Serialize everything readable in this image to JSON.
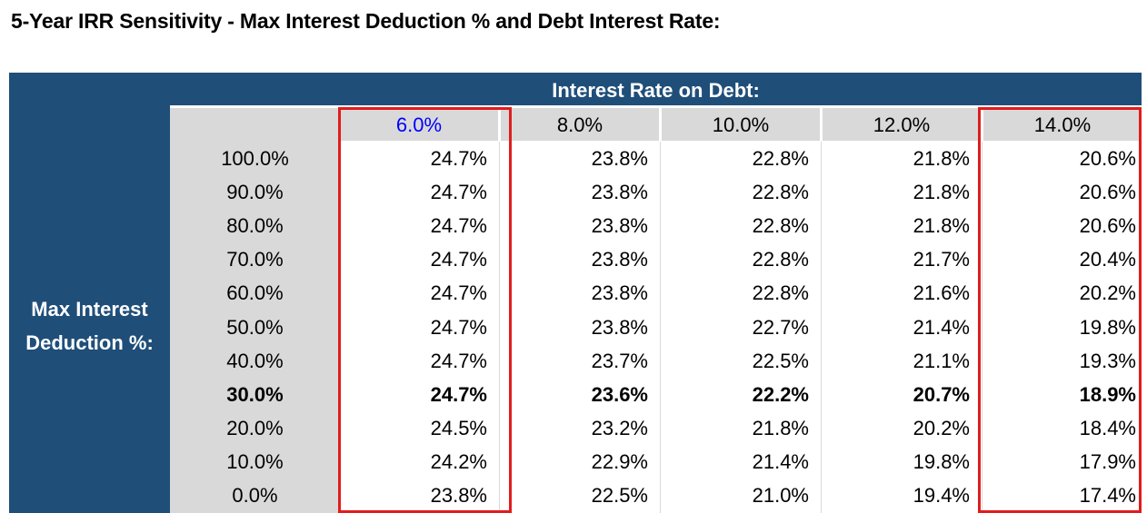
{
  "title": "5-Year IRR Sensitivity - Max Interest Deduction % and Debt Interest Rate:",
  "col_axis_label": "Interest Rate on Debt:",
  "row_axis_label": [
    "Max Interest",
    "Deduction %:"
  ],
  "columns": [
    "6.0%",
    "8.0%",
    "10.0%",
    "12.0%",
    "14.0%"
  ],
  "rows": [
    {
      "label": "100.0%",
      "values": [
        "24.7%",
        "23.8%",
        "22.8%",
        "21.8%",
        "20.6%"
      ]
    },
    {
      "label": "90.0%",
      "values": [
        "24.7%",
        "23.8%",
        "22.8%",
        "21.8%",
        "20.6%"
      ]
    },
    {
      "label": "80.0%",
      "values": [
        "24.7%",
        "23.8%",
        "22.8%",
        "21.8%",
        "20.6%"
      ]
    },
    {
      "label": "70.0%",
      "values": [
        "24.7%",
        "23.8%",
        "22.8%",
        "21.7%",
        "20.4%"
      ]
    },
    {
      "label": "60.0%",
      "values": [
        "24.7%",
        "23.8%",
        "22.8%",
        "21.6%",
        "20.2%"
      ]
    },
    {
      "label": "50.0%",
      "values": [
        "24.7%",
        "23.8%",
        "22.7%",
        "21.4%",
        "19.8%"
      ]
    },
    {
      "label": "40.0%",
      "values": [
        "24.7%",
        "23.7%",
        "22.5%",
        "21.1%",
        "19.3%"
      ]
    },
    {
      "label": "30.0%",
      "values": [
        "24.7%",
        "23.6%",
        "22.2%",
        "20.7%",
        "18.9%"
      ]
    },
    {
      "label": "20.0%",
      "values": [
        "24.5%",
        "23.2%",
        "21.8%",
        "20.2%",
        "18.4%"
      ]
    },
    {
      "label": "10.0%",
      "values": [
        "24.2%",
        "22.9%",
        "21.4%",
        "19.8%",
        "17.9%"
      ]
    },
    {
      "label": "0.0%",
      "values": [
        "23.8%",
        "22.5%",
        "21.0%",
        "19.4%",
        "17.4%"
      ]
    }
  ],
  "bold_row_index": 7,
  "colors": {
    "header_fill": "#1f4e79",
    "gray_fill": "#d9d9d9",
    "highlight_border": "#e11c1c",
    "first_column_header_text": "#0000ff"
  }
}
